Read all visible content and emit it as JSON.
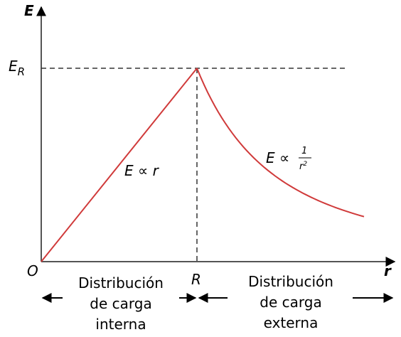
{
  "axes": {
    "y_label": "E",
    "x_label": "r",
    "origin": "O",
    "x_mark": "R",
    "y_mark": {
      "main": "E",
      "sub": "R"
    }
  },
  "annotations": {
    "inner": "E ∝ r",
    "outer": {
      "lhs": "E ∝",
      "numerator": "1",
      "denominator": "r",
      "exponent": "2"
    }
  },
  "regions": [
    {
      "lines": [
        "Distribución",
        "de carga",
        "interna"
      ]
    },
    {
      "lines": [
        "Distribución",
        "de carga",
        "externa"
      ]
    }
  ]
}
